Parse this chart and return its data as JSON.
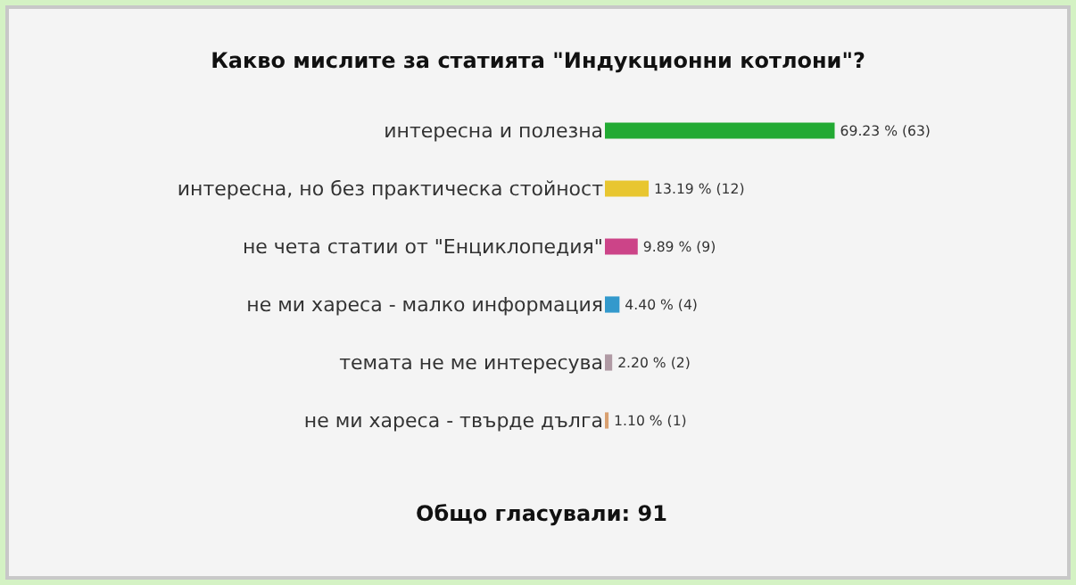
{
  "chart_data": {
    "type": "bar",
    "orientation": "horizontal",
    "title": "Какво мислите за статията \"Индукционни котлони\"?",
    "categories": [
      "интересна и полезна",
      "интересна, но без практическа стойност",
      "не чета статии от \"Енциклопедия\"",
      "не ми хареса - малко информация",
      "темата не ме интересува",
      "не ми хареса - твърде дълга"
    ],
    "values": [
      69.23,
      13.19,
      9.89,
      4.4,
      2.2,
      1.1
    ],
    "value_labels": [
      "69.23 % (63)",
      "13.19 % (12)",
      "9.89 % (9)",
      "4.40 % (4)",
      "2.20 % (2)",
      "1.10 % (1)"
    ],
    "colors": [
      "#22aa33",
      "#e8c630",
      "#cc4488",
      "#3399cc",
      "#b09aa4",
      "#d9a070"
    ],
    "annotations": [
      "Общо гласували: 91"
    ],
    "grid": false,
    "legend": false
  }
}
